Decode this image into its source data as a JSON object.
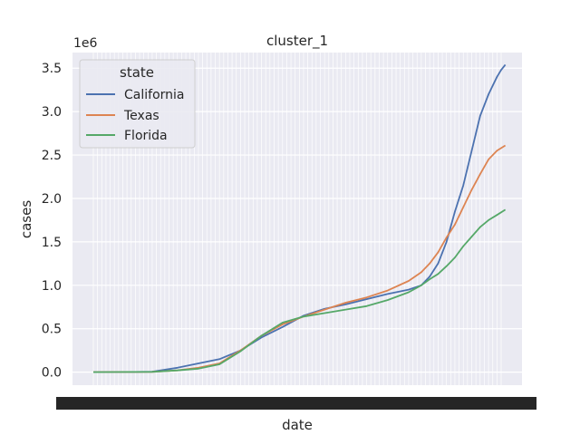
{
  "chart_data": {
    "type": "line",
    "title": "cluster_1",
    "xlabel": "date",
    "ylabel": "cases",
    "y_offset_label": "1e6",
    "ylim": [
      -150000,
      3680000
    ],
    "yticks": [
      0,
      500000,
      1000000,
      1500000,
      2000000,
      2500000,
      3000000,
      3500000
    ],
    "ytick_labels": [
      "0.0",
      "0.5",
      "1.0",
      "1.5",
      "2.0",
      "2.5",
      "3.0",
      "3.5"
    ],
    "x_count": 97,
    "grid": true,
    "legend": {
      "title": "state",
      "placement": "upper-left"
    },
    "series": [
      {
        "name": "California",
        "color": "#4c72b0",
        "points": [
          [
            0,
            0
          ],
          [
            10,
            2000
          ],
          [
            14,
            5000
          ],
          [
            20,
            50000
          ],
          [
            25,
            100000
          ],
          [
            30,
            150000
          ],
          [
            35,
            250000
          ],
          [
            40,
            400000
          ],
          [
            45,
            520000
          ],
          [
            50,
            650000
          ],
          [
            55,
            730000
          ],
          [
            60,
            780000
          ],
          [
            65,
            840000
          ],
          [
            70,
            900000
          ],
          [
            75,
            950000
          ],
          [
            78,
            1000000
          ],
          [
            80,
            1100000
          ],
          [
            82,
            1250000
          ],
          [
            84,
            1500000
          ],
          [
            86,
            1850000
          ],
          [
            88,
            2150000
          ],
          [
            90,
            2550000
          ],
          [
            92,
            2950000
          ],
          [
            94,
            3200000
          ],
          [
            96,
            3400000
          ],
          [
            97,
            3480000
          ],
          [
            98,
            3540000
          ]
        ]
      },
      {
        "name": "Texas",
        "color": "#dd8452",
        "points": [
          [
            0,
            0
          ],
          [
            14,
            3000
          ],
          [
            20,
            20000
          ],
          [
            25,
            50000
          ],
          [
            30,
            100000
          ],
          [
            35,
            250000
          ],
          [
            40,
            420000
          ],
          [
            45,
            550000
          ],
          [
            50,
            640000
          ],
          [
            55,
            720000
          ],
          [
            60,
            800000
          ],
          [
            65,
            860000
          ],
          [
            70,
            940000
          ],
          [
            75,
            1050000
          ],
          [
            78,
            1150000
          ],
          [
            80,
            1250000
          ],
          [
            82,
            1380000
          ],
          [
            84,
            1550000
          ],
          [
            86,
            1700000
          ],
          [
            88,
            1900000
          ],
          [
            90,
            2100000
          ],
          [
            92,
            2280000
          ],
          [
            94,
            2450000
          ],
          [
            96,
            2550000
          ],
          [
            98,
            2610000
          ]
        ]
      },
      {
        "name": "Florida",
        "color": "#55a868",
        "points": [
          [
            0,
            0
          ],
          [
            14,
            3000
          ],
          [
            20,
            20000
          ],
          [
            25,
            40000
          ],
          [
            30,
            90000
          ],
          [
            35,
            240000
          ],
          [
            40,
            420000
          ],
          [
            45,
            570000
          ],
          [
            50,
            640000
          ],
          [
            55,
            680000
          ],
          [
            60,
            720000
          ],
          [
            65,
            760000
          ],
          [
            70,
            830000
          ],
          [
            75,
            920000
          ],
          [
            78,
            1000000
          ],
          [
            80,
            1070000
          ],
          [
            82,
            1130000
          ],
          [
            84,
            1220000
          ],
          [
            86,
            1320000
          ],
          [
            88,
            1450000
          ],
          [
            90,
            1560000
          ],
          [
            92,
            1670000
          ],
          [
            94,
            1750000
          ],
          [
            96,
            1810000
          ],
          [
            98,
            1870000
          ]
        ]
      }
    ]
  }
}
